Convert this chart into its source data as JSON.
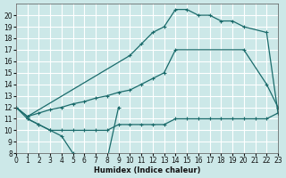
{
  "xlabel": "Humidex (Indice chaleur)",
  "bg_color": "#cce8e8",
  "grid_color": "#ffffff",
  "line_color": "#1a6b6b",
  "curve1_x": [
    0,
    1,
    2,
    3,
    4,
    5,
    6,
    7,
    8,
    9
  ],
  "curve1_y": [
    12,
    11,
    10.5,
    10,
    9.5,
    8,
    7.5,
    7.5,
    7.5,
    12
  ],
  "curve2_x": [
    1,
    2,
    3,
    4,
    5,
    6,
    7,
    8,
    9,
    10,
    11,
    12,
    13,
    14,
    15,
    16,
    17,
    18,
    19,
    20,
    21,
    22,
    23
  ],
  "curve2_y": [
    11,
    10.5,
    10,
    10,
    10,
    10,
    10,
    10,
    10.5,
    10.5,
    10.5,
    10.5,
    10.5,
    11,
    11,
    11,
    11,
    11,
    11,
    11,
    11,
    11,
    11.5
  ],
  "curve3_x": [
    0,
    1,
    2,
    3,
    4,
    5,
    6,
    7,
    8,
    9,
    10,
    11,
    12,
    13,
    14,
    20,
    22,
    23
  ],
  "curve3_y": [
    12,
    11.2,
    11.5,
    11.8,
    12,
    12.3,
    12.5,
    12.8,
    13,
    13.3,
    13.5,
    14,
    14.5,
    15,
    17,
    17,
    14,
    12
  ],
  "curve4_x": [
    0,
    1,
    10,
    11,
    12,
    13,
    14,
    15,
    16,
    17,
    18,
    19,
    20,
    22,
    23
  ],
  "curve4_y": [
    12,
    11.2,
    16.5,
    17.5,
    18.5,
    19,
    20.5,
    20.5,
    20,
    20,
    19.5,
    19.5,
    19,
    18.5,
    11.5
  ],
  "ylim": [
    8,
    21
  ],
  "xlim": [
    0,
    23
  ],
  "yticks": [
    8,
    9,
    10,
    11,
    12,
    13,
    14,
    15,
    16,
    17,
    18,
    19,
    20
  ],
  "xticks": [
    0,
    1,
    2,
    3,
    4,
    5,
    6,
    7,
    8,
    9,
    10,
    11,
    12,
    13,
    14,
    15,
    16,
    17,
    18,
    19,
    20,
    21,
    22,
    23
  ]
}
